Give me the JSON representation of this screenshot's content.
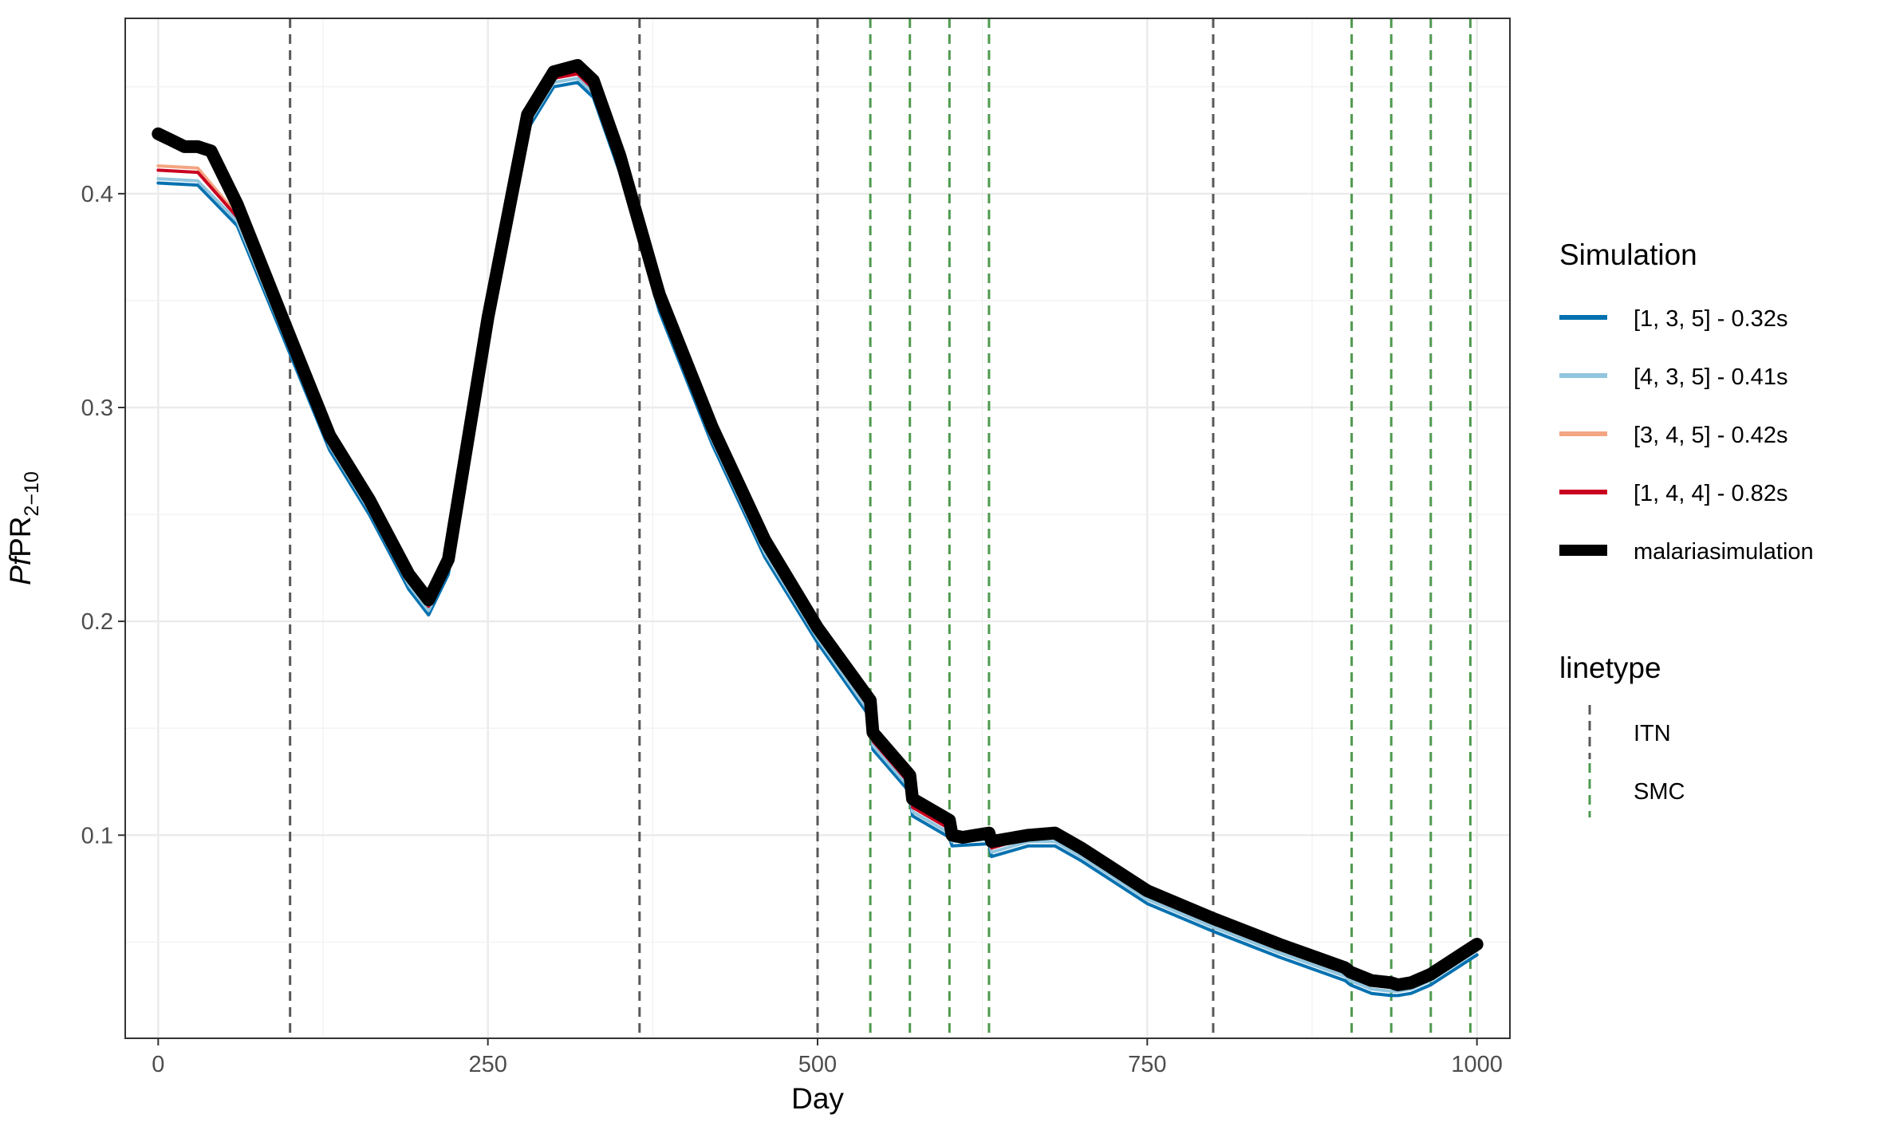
{
  "chart_data": {
    "type": "line",
    "xlabel": "Day",
    "ylabel": {
      "main": "PfPR",
      "italic_part": "Pf",
      "rest": "PR",
      "subscript": "2−10"
    },
    "xlim": [
      -25,
      1025
    ],
    "ylim": [
      0.005,
      0.482
    ],
    "xticks": [
      0,
      250,
      500,
      750,
      1000
    ],
    "xtick_labels": [
      "0",
      "250",
      "500",
      "750",
      "1000"
    ],
    "yticks": [
      0.1,
      0.2,
      0.3,
      0.4
    ],
    "ytick_labels": [
      "0.1",
      "0.2",
      "0.3",
      "0.4"
    ],
    "grid": true,
    "legend_position": "right",
    "legends": [
      {
        "title": "Simulation",
        "entries": [
          {
            "label": "[1, 3, 5] - 0.32s",
            "color": "#0571b0"
          },
          {
            "label": "[4, 3, 5] - 0.41s",
            "color": "#92c5de"
          },
          {
            "label": "[3, 4, 5] - 0.42s",
            "color": "#f4a582"
          },
          {
            "label": "[1, 4, 4] - 0.82s",
            "color": "#ca0020"
          },
          {
            "label": "malariasimulation",
            "color": "#000000"
          }
        ]
      },
      {
        "title": "linetype",
        "entries": [
          {
            "label": "ITN",
            "color": "#595959"
          },
          {
            "label": "SMC",
            "color": "#4e9a4e"
          }
        ]
      }
    ],
    "series": [
      {
        "name": "[1, 3, 5] - 0.32s",
        "color": "#0571b0",
        "offset": -0.006,
        "x": [
          0,
          30,
          60,
          100,
          130,
          160,
          190,
          205,
          220,
          250,
          280,
          300,
          318,
          330,
          350,
          380,
          420,
          460,
          500,
          540,
          542,
          570,
          572,
          600,
          602,
          630,
          632,
          660,
          680,
          700,
          750,
          800,
          850,
          900,
          904,
          920,
          935,
          940,
          950,
          965,
          990,
          1000
        ],
        "y": [
          0.405,
          0.404,
          0.385,
          0.325,
          0.28,
          0.25,
          0.215,
          0.203,
          0.222,
          0.335,
          0.43,
          0.45,
          0.452,
          0.445,
          0.41,
          0.345,
          0.283,
          0.23,
          0.19,
          0.155,
          0.14,
          0.12,
          0.109,
          0.099,
          0.095,
          0.096,
          0.09,
          0.095,
          0.095,
          0.088,
          0.068,
          0.055,
          0.043,
          0.032,
          0.03,
          0.026,
          0.025,
          0.025,
          0.026,
          0.03,
          0.04,
          0.044
        ]
      },
      {
        "name": "[4, 3, 5] - 0.41s",
        "color": "#92c5de",
        "offset": -0.004,
        "x": [
          0,
          30,
          60,
          100,
          130,
          160,
          190,
          205,
          220,
          250,
          280,
          300,
          318,
          330,
          350,
          380,
          420,
          460,
          500,
          540,
          542,
          570,
          572,
          600,
          602,
          630,
          632,
          660,
          680,
          700,
          750,
          800,
          850,
          900,
          904,
          920,
          935,
          940,
          950,
          965,
          990,
          1000
        ],
        "y": [
          0.407,
          0.406,
          0.387,
          0.327,
          0.282,
          0.252,
          0.217,
          0.205,
          0.224,
          0.337,
          0.432,
          0.452,
          0.454,
          0.447,
          0.412,
          0.347,
          0.285,
          0.232,
          0.192,
          0.157,
          0.142,
          0.122,
          0.111,
          0.101,
          0.097,
          0.098,
          0.092,
          0.097,
          0.097,
          0.09,
          0.07,
          0.057,
          0.045,
          0.034,
          0.032,
          0.028,
          0.027,
          0.027,
          0.028,
          0.032,
          0.042,
          0.046
        ]
      },
      {
        "name": "[3, 4, 5] - 0.42s",
        "color": "#f4a582",
        "offset": 0.004,
        "x": [
          0,
          30,
          60,
          100,
          130,
          160,
          190,
          205,
          220,
          250,
          280,
          300,
          318,
          330,
          350,
          380,
          420,
          460,
          500,
          540,
          542,
          570,
          572,
          600,
          602,
          630,
          632,
          660,
          680,
          700,
          750,
          800,
          850,
          900,
          904,
          920,
          935,
          940,
          950,
          965,
          990,
          1000
        ],
        "y": [
          0.413,
          0.412,
          0.39,
          0.33,
          0.285,
          0.255,
          0.22,
          0.208,
          0.227,
          0.34,
          0.435,
          0.455,
          0.457,
          0.45,
          0.415,
          0.35,
          0.288,
          0.235,
          0.195,
          0.16,
          0.145,
          0.125,
          0.114,
          0.104,
          0.1,
          0.101,
          0.095,
          0.1,
          0.1,
          0.093,
          0.073,
          0.06,
          0.048,
          0.037,
          0.035,
          0.031,
          0.03,
          0.03,
          0.031,
          0.035,
          0.045,
          0.049
        ]
      },
      {
        "name": "[1, 4, 4] - 0.82s",
        "color": "#ca0020",
        "offset": 0.002,
        "x": [
          0,
          30,
          60,
          100,
          130,
          160,
          190,
          205,
          220,
          250,
          280,
          300,
          318,
          330,
          350,
          380,
          420,
          460,
          500,
          540,
          542,
          570,
          572,
          600,
          602,
          630,
          632,
          660,
          680,
          700,
          750,
          800,
          850,
          900,
          904,
          920,
          935,
          940,
          950,
          965,
          990,
          1000
        ],
        "y": [
          0.411,
          0.41,
          0.389,
          0.329,
          0.284,
          0.254,
          0.219,
          0.207,
          0.226,
          0.339,
          0.434,
          0.454,
          0.456,
          0.449,
          0.414,
          0.349,
          0.287,
          0.234,
          0.194,
          0.159,
          0.144,
          0.124,
          0.113,
          0.103,
          0.099,
          0.1,
          0.094,
          0.099,
          0.099,
          0.092,
          0.072,
          0.059,
          0.047,
          0.036,
          0.034,
          0.03,
          0.029,
          0.029,
          0.03,
          0.034,
          0.044,
          0.048
        ]
      },
      {
        "name": "malariasimulation",
        "color": "#000000",
        "offset": 0,
        "x": [
          0,
          10,
          20,
          30,
          40,
          60,
          100,
          130,
          160,
          190,
          205,
          220,
          250,
          280,
          300,
          318,
          330,
          350,
          380,
          420,
          460,
          500,
          540,
          542,
          570,
          572,
          600,
          602,
          610,
          620,
          630,
          632,
          660,
          680,
          700,
          750,
          800,
          850,
          900,
          904,
          920,
          935,
          940,
          950,
          965,
          990,
          1000
        ],
        "y": [
          0.428,
          0.425,
          0.422,
          0.422,
          0.42,
          0.395,
          0.333,
          0.287,
          0.257,
          0.222,
          0.21,
          0.229,
          0.342,
          0.437,
          0.457,
          0.46,
          0.453,
          0.418,
          0.353,
          0.291,
          0.238,
          0.197,
          0.163,
          0.148,
          0.128,
          0.117,
          0.107,
          0.1,
          0.099,
          0.1,
          0.101,
          0.097,
          0.1,
          0.101,
          0.094,
          0.074,
          0.061,
          0.049,
          0.038,
          0.036,
          0.032,
          0.031,
          0.03,
          0.031,
          0.035,
          0.045,
          0.049
        ]
      }
    ],
    "vlines": [
      {
        "x": 100,
        "type": "ITN"
      },
      {
        "x": 365,
        "type": "ITN"
      },
      {
        "x": 500,
        "type": "ITN"
      },
      {
        "x": 800,
        "type": "ITN"
      },
      {
        "x": 540,
        "type": "SMC"
      },
      {
        "x": 570,
        "type": "SMC"
      },
      {
        "x": 600,
        "type": "SMC"
      },
      {
        "x": 630,
        "type": "SMC"
      },
      {
        "x": 905,
        "type": "SMC"
      },
      {
        "x": 935,
        "type": "SMC"
      },
      {
        "x": 965,
        "type": "SMC"
      },
      {
        "x": 995,
        "type": "SMC"
      }
    ],
    "vline_colors": {
      "ITN": "#595959",
      "SMC": "#4e9a4e"
    }
  }
}
